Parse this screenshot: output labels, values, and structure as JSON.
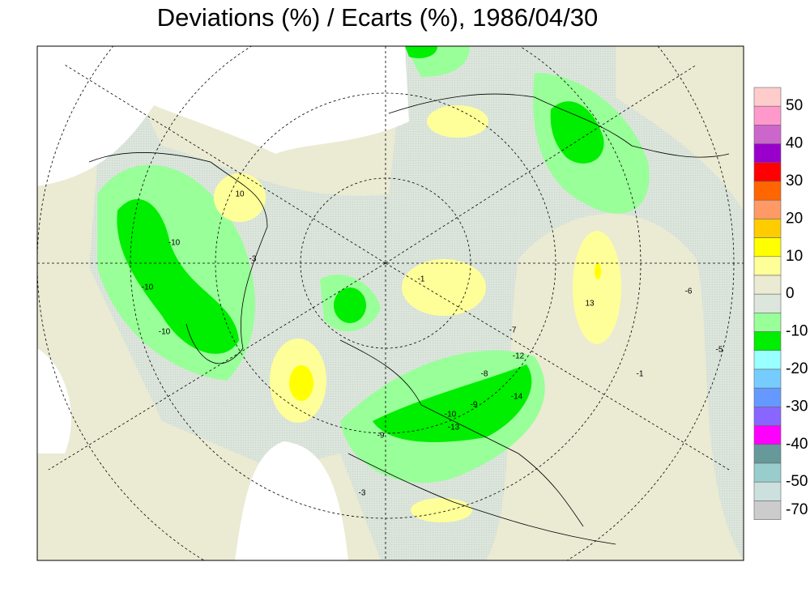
{
  "title": "Deviations (%) / Ecarts (%), 1986/04/30",
  "legend": {
    "levels": [
      50,
      40,
      30,
      20,
      10,
      0,
      -10,
      -20,
      -30,
      -40,
      -50,
      -70
    ],
    "colors": [
      "#ffcccc",
      "#ff99cc",
      "#cc66cc",
      "#9900cc",
      "#ff0000",
      "#ff6600",
      "#ff9966",
      "#ffcc00",
      "#ffff00",
      "#ffff99",
      "#ebead3",
      "#dce6dc",
      "#99ff99",
      "#00ee00",
      "#99ffff",
      "#77ccff",
      "#6699ff",
      "#8866ff",
      "#ff00ff",
      "#669999",
      "#99cccc",
      "#cce0dd",
      "#cccccc"
    ]
  },
  "map": {
    "contour_labels": [
      "-10",
      "-10",
      "-10",
      "10",
      "-3",
      "-1",
      "-7",
      "-12",
      "-8",
      "-9",
      "-10",
      "-13",
      "-14",
      "-9",
      "13",
      "-6",
      "-5",
      "-3",
      "-1"
    ]
  }
}
